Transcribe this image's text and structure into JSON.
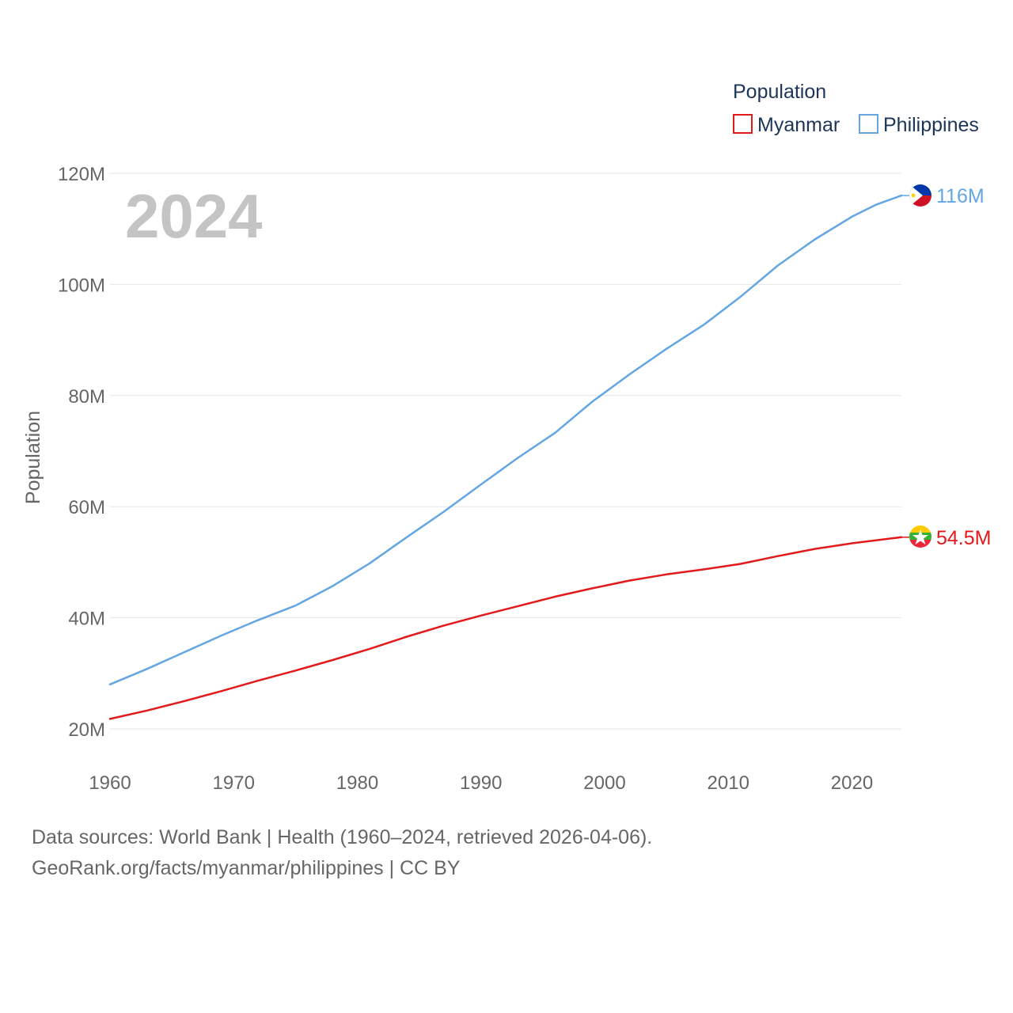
{
  "chart_data": {
    "type": "line",
    "title": "",
    "year_label": "2024",
    "ylabel": "Population",
    "xlabel": "",
    "xlim": [
      1960,
      2024
    ],
    "ylim": [
      20000000,
      120000000
    ],
    "x_ticks": [
      {
        "value": 1960,
        "label": "1960"
      },
      {
        "value": 1970,
        "label": "1970"
      },
      {
        "value": 1980,
        "label": "1980"
      },
      {
        "value": 1990,
        "label": "1990"
      },
      {
        "value": 2000,
        "label": "2000"
      },
      {
        "value": 2010,
        "label": "2010"
      },
      {
        "value": 2020,
        "label": "2020"
      }
    ],
    "y_ticks": [
      {
        "value": 20000000,
        "label": "20M"
      },
      {
        "value": 40000000,
        "label": "40M"
      },
      {
        "value": 60000000,
        "label": "60M"
      },
      {
        "value": 80000000,
        "label": "80M"
      },
      {
        "value": 100000000,
        "label": "100M"
      },
      {
        "value": 120000000,
        "label": "120M"
      }
    ],
    "legend": {
      "title": "Population",
      "position": "top-right"
    },
    "grid": true,
    "series": [
      {
        "name": "Myanmar",
        "color": "#e31a1c",
        "end_label": "54.5M",
        "flag_icon": "myanmar-flag-icon",
        "x": [
          1960,
          1963,
          1966,
          1969,
          1972,
          1975,
          1978,
          1981,
          1984,
          1987,
          1990,
          1993,
          1996,
          1999,
          2002,
          2005,
          2008,
          2011,
          2014,
          2017,
          2020,
          2024
        ],
        "values": [
          21800000,
          23300000,
          25000000,
          26800000,
          28700000,
          30500000,
          32400000,
          34400000,
          36600000,
          38600000,
          40400000,
          42100000,
          43800000,
          45300000,
          46700000,
          47800000,
          48700000,
          49700000,
          51100000,
          52400000,
          53400000,
          54500000
        ]
      },
      {
        "name": "Philippines",
        "color": "#64a6e3",
        "end_label": "116M",
        "flag_icon": "philippines-flag-icon",
        "x": [
          1960,
          1963,
          1966,
          1969,
          1972,
          1975,
          1978,
          1981,
          1984,
          1987,
          1990,
          1993,
          1996,
          1999,
          2002,
          2005,
          2008,
          2011,
          2014,
          2017,
          2020,
          2022,
          2024
        ],
        "values": [
          28000000,
          30800000,
          33800000,
          36800000,
          39600000,
          42200000,
          45700000,
          49800000,
          54500000,
          59100000,
          64000000,
          68800000,
          73300000,
          78900000,
          83800000,
          88400000,
          92700000,
          97800000,
          103400000,
          108100000,
          112200000,
          114400000,
          116000000
        ]
      }
    ]
  },
  "footer": {
    "line1": "Data sources: World Bank | Health (1960–2024, retrieved 2026-04-06).",
    "line2": "GeoRank.org/facts/myanmar/philippines | CC BY"
  }
}
